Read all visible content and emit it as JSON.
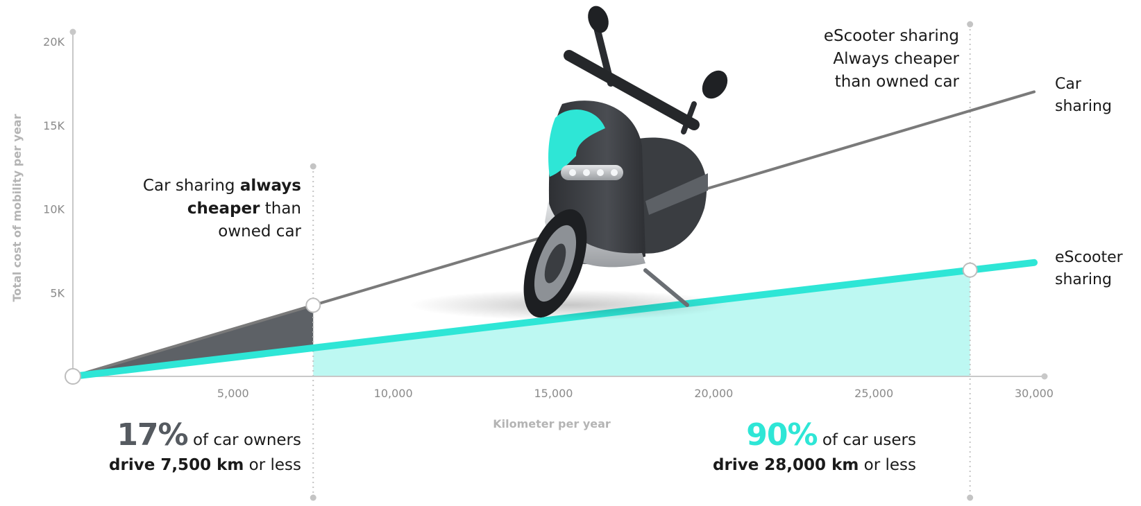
{
  "chart_data": {
    "type": "line",
    "xlabel": "Kilometer per year",
    "ylabel": "Total cost of mobility per year",
    "xlim": [
      0,
      30000
    ],
    "ylim": [
      0,
      20000
    ],
    "x_ticks": [
      "5,000",
      "10,000",
      "15,000",
      "20,000",
      "25,000",
      "30,000"
    ],
    "x_tick_values": [
      5000,
      10000,
      15000,
      20000,
      25000,
      30000
    ],
    "y_ticks": [
      "5K",
      "10K",
      "15K",
      "20K"
    ],
    "y_tick_values": [
      5000,
      10000,
      15000,
      20000
    ],
    "series": [
      {
        "name": "Car sharing",
        "label_lines": [
          "Car",
          "sharing"
        ],
        "color": "#7a7a7a",
        "x": [
          0,
          30000
        ],
        "y": [
          0,
          17000
        ]
      },
      {
        "name": "eScooter sharing",
        "label_lines": [
          "eScooter",
          "sharing"
        ],
        "color": "#2ee6d6",
        "x": [
          0,
          30000
        ],
        "y": [
          0,
          6800
        ]
      }
    ],
    "markers": [
      {
        "x": 7500,
        "series": "Car sharing",
        "y": 4250
      },
      {
        "x": 28000,
        "series": "eScooter sharing",
        "y": 6350
      },
      {
        "x": 0,
        "series": "origin",
        "y": 0
      }
    ],
    "shaded_regions": [
      {
        "from_x": 0,
        "to_x": 7500,
        "fill": "#5d6166",
        "between": [
          "eScooter sharing",
          "Car sharing"
        ]
      },
      {
        "from_x": 7500,
        "to_x": 28000,
        "fill": "#bdf8f2",
        "between": [
          "axis",
          "eScooter sharing"
        ]
      }
    ],
    "vertical_guides": [
      7500,
      28000
    ],
    "grid": false,
    "legend": "inline-right"
  },
  "annotations": {
    "left_note": {
      "line1_pre": "Car sharing ",
      "line1_bold": "always",
      "line2_bold": "cheaper",
      "line2_post": " than",
      "line3": "owned car"
    },
    "right_note": {
      "line1": "eScooter sharing",
      "line2": "Always cheaper",
      "line3": "than owned car"
    },
    "stat_left": {
      "percent": "17%",
      "text1": " of car owners",
      "bold2": "drive 7,500 km",
      "text2": " or less"
    },
    "stat_right": {
      "percent": "90%",
      "text1": " of car users",
      "bold2": "drive 28,000 km",
      "text2": " or less"
    }
  },
  "image": {
    "subject": "escooter-photo",
    "colors": {
      "body": "#3c3f43",
      "accent": "#2ee6d6",
      "trim": "#c8cbcf"
    }
  }
}
